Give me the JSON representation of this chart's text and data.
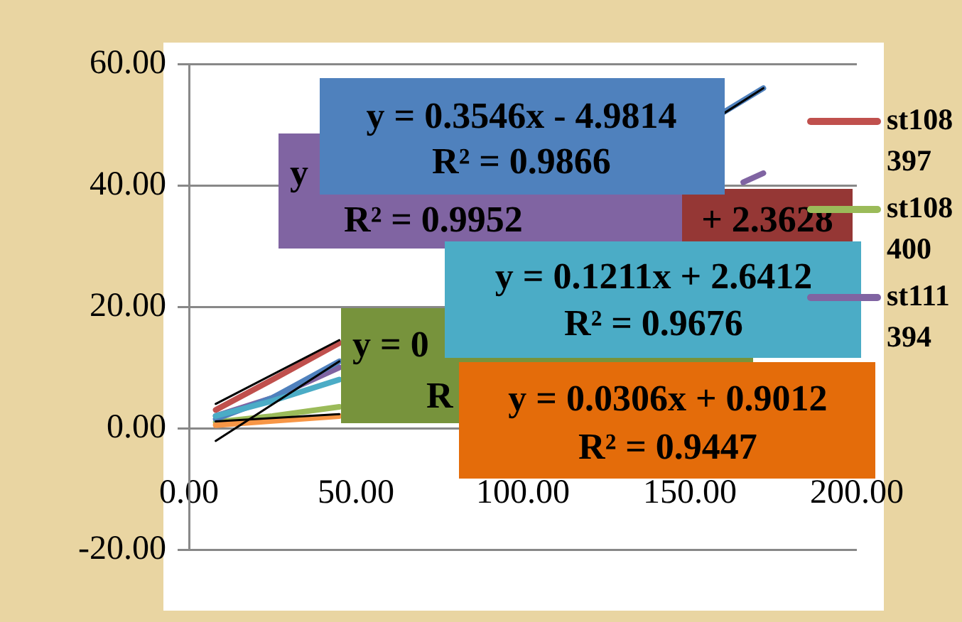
{
  "chart_data": {
    "type": "line",
    "marker": "none",
    "grid": "y",
    "legend": "right",
    "xlim": [
      0,
      200
    ],
    "xticks": [
      {
        "value": 0,
        "label": "0.00"
      },
      {
        "value": 50,
        "label": "50.00"
      },
      {
        "value": 100,
        "label": "100.00"
      },
      {
        "value": 150,
        "label": "150.00"
      },
      {
        "value": 200,
        "label": "200.00"
      }
    ],
    "ylim": [
      -20,
      60
    ],
    "yticks": [
      {
        "value": -20,
        "label": "-20.00"
      },
      {
        "value": 0,
        "label": "0.00"
      },
      {
        "value": 20,
        "label": "20.00"
      },
      {
        "value": 40,
        "label": "40.00"
      },
      {
        "value": 60,
        "label": "60.00"
      }
    ],
    "series": [
      {
        "name": "st108397",
        "color": "#c0504d",
        "x": [
          8,
          25,
          45
        ],
        "values": [
          3,
          8,
          14
        ]
      },
      {
        "name": "st108400",
        "color": "#9bbb59",
        "x": [
          8,
          25,
          45
        ],
        "values": [
          1,
          2,
          3.5
        ]
      },
      {
        "name": "st111394",
        "color": "#8064a2",
        "x": [
          8,
          25,
          45,
          100,
          166,
          172
        ],
        "values": [
          2,
          5,
          10,
          null,
          40.5,
          42
        ]
      },
      {
        "color": "#4f81bd",
        "x": [
          8,
          25,
          45,
          100,
          160,
          172
        ],
        "values": [
          1.5,
          5,
          11,
          null,
          52,
          56
        ]
      },
      {
        "color": "#4bacc6",
        "x": [
          8,
          25,
          45
        ],
        "values": [
          2,
          4.5,
          8
        ]
      },
      {
        "color": "#f79646",
        "x": [
          8,
          25,
          45
        ],
        "values": [
          0.5,
          1.2,
          2
        ]
      },
      {
        "color": "#000000",
        "x": [
          8,
          45,
          100,
          160,
          172
        ],
        "values": [
          -2.1,
          11,
          null,
          51.8,
          56
        ]
      },
      {
        "color": "#000000",
        "x": [
          8,
          45
        ],
        "values": [
          4,
          14.5
        ]
      },
      {
        "color": "#000000",
        "x": [
          8,
          45
        ],
        "values": [
          1.1,
          2.3
        ]
      }
    ],
    "annotations": [
      "y = 0.3546x - 4.9814",
      "R² = 0.9866",
      "y",
      "R² = 0.9952",
      "+ 2.3628",
      "y = 0.1211x + 2.6412",
      "R² = 0.9676",
      "y = 0",
      "R",
      "y = 0.0306x + 0.9012",
      "R² = 0.9447"
    ]
  }
}
